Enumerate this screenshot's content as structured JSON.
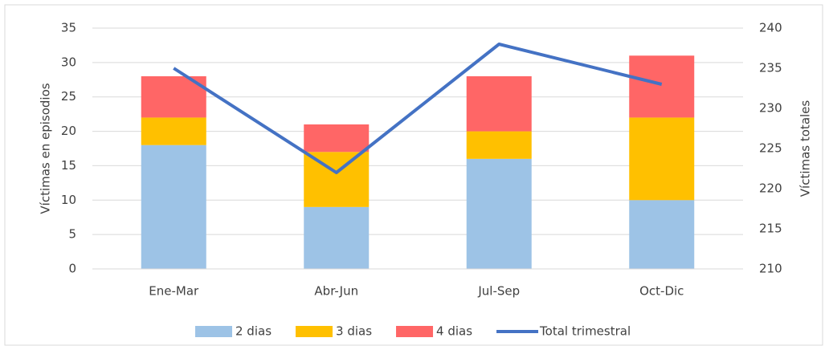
{
  "chart_data": {
    "type": "bar",
    "categories": [
      "Ene-Mar",
      "Abr-Jun",
      "Jul-Sep",
      "Oct-Dic"
    ],
    "series": [
      {
        "name": "2 dias",
        "type": "bar",
        "color": "#9dc3e6",
        "values": [
          18,
          9,
          16,
          10
        ]
      },
      {
        "name": "3 dias",
        "type": "bar",
        "color": "#ffc000",
        "values": [
          4,
          8,
          4,
          12
        ]
      },
      {
        "name": "4 dias",
        "type": "bar",
        "color": "#ff6666",
        "values": [
          6,
          4,
          8,
          9
        ]
      },
      {
        "name": "Total trimestral",
        "type": "line",
        "color": "#4472c4",
        "axis": "y2",
        "values": [
          235,
          222,
          238,
          233
        ]
      }
    ],
    "ylabel": "Víctimas en episodios",
    "y2label": "Víctimas totales",
    "ylim": [
      0,
      35
    ],
    "yticks": [
      0,
      5,
      10,
      15,
      20,
      25,
      30,
      35
    ],
    "y2lim": [
      210,
      240
    ],
    "y2ticks": [
      210,
      215,
      220,
      225,
      230,
      235,
      240
    ],
    "grid": true,
    "stacked": true,
    "legend": "bottom"
  }
}
